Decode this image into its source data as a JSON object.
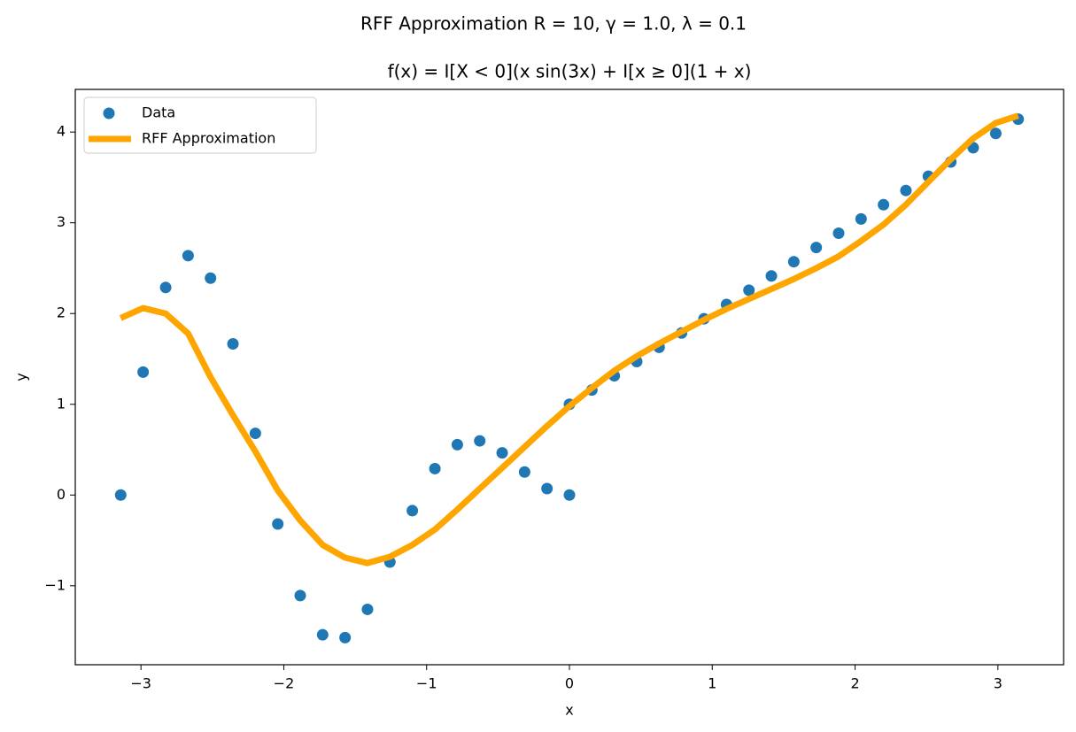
{
  "chart_data": {
    "type": "scatter",
    "title": "RFF Approximation R = 10, γ = 1.0, λ = 0.1",
    "subtitle": "f(x) = I[X < 0](x sin(3x) + I[x ≥ 0](1 + x)",
    "xlabel": "x",
    "ylabel": "y",
    "xlim": [
      -3.46,
      3.46
    ],
    "ylim": [
      -1.87,
      4.47
    ],
    "xticks": [
      {
        "value": -3,
        "label": "−3"
      },
      {
        "value": -2,
        "label": "−2"
      },
      {
        "value": -1,
        "label": "−1"
      },
      0,
      1,
      2,
      3
    ],
    "yticks": [
      {
        "value": -1,
        "label": "−1"
      },
      0,
      1,
      2,
      3,
      4
    ],
    "legend": "upper left",
    "series": [
      {
        "name": "Data",
        "color": "#1f77b4",
        "kind": "scatter",
        "x": [
          -3.142,
          -2.985,
          -2.827,
          -2.67,
          -2.513,
          -2.356,
          -2.199,
          -2.042,
          -1.885,
          -1.728,
          -1.571,
          -1.414,
          -1.257,
          -1.1,
          -0.942,
          -0.785,
          -0.628,
          -0.471,
          -0.314,
          -0.157,
          0,
          0,
          0.157,
          0.314,
          0.471,
          0.628,
          0.785,
          0.942,
          1.1,
          1.257,
          1.414,
          1.571,
          1.728,
          1.885,
          2.042,
          2.199,
          2.356,
          2.513,
          2.67,
          2.827,
          2.985,
          3.142
        ],
        "values": [
          0,
          1.355,
          2.287,
          2.638,
          2.39,
          1.666,
          0.68,
          -0.319,
          -1.108,
          -1.54,
          -1.571,
          -1.26,
          -0.739,
          -0.172,
          0.291,
          0.555,
          0.597,
          0.465,
          0.254,
          0.071,
          0,
          1,
          1.157,
          1.314,
          1.471,
          1.628,
          1.785,
          1.942,
          2.1,
          2.257,
          2.414,
          2.571,
          2.728,
          2.885,
          3.042,
          3.199,
          3.356,
          3.513,
          3.67,
          3.827,
          3.985,
          4.142
        ]
      },
      {
        "name": "RFF Approximation",
        "color": "#ffa500",
        "kind": "line",
        "x": [
          -3.142,
          -2.985,
          -2.827,
          -2.67,
          -2.513,
          -2.356,
          -2.199,
          -2.042,
          -1.885,
          -1.728,
          -1.571,
          -1.414,
          -1.257,
          -1.1,
          -0.942,
          -0.785,
          -0.628,
          -0.471,
          -0.314,
          -0.157,
          0,
          0.157,
          0.314,
          0.471,
          0.628,
          0.785,
          0.942,
          1.1,
          1.257,
          1.414,
          1.571,
          1.728,
          1.885,
          2.042,
          2.199,
          2.356,
          2.513,
          2.67,
          2.827,
          2.985,
          3.142
        ],
        "values": [
          1.95,
          2.06,
          2.0,
          1.78,
          1.3,
          0.88,
          0.48,
          0.05,
          -0.28,
          -0.55,
          -0.69,
          -0.75,
          -0.68,
          -0.55,
          -0.38,
          -0.16,
          0.07,
          0.3,
          0.53,
          0.76,
          0.98,
          1.18,
          1.37,
          1.53,
          1.67,
          1.8,
          1.93,
          2.05,
          2.16,
          2.27,
          2.38,
          2.5,
          2.63,
          2.8,
          2.98,
          3.2,
          3.45,
          3.7,
          3.93,
          4.1,
          4.18
        ]
      }
    ]
  }
}
